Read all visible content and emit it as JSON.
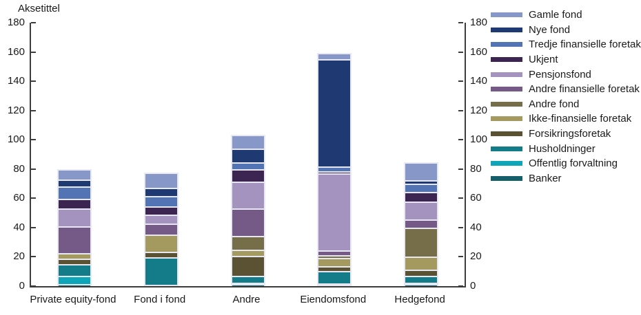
{
  "chart_data": {
    "type": "bar",
    "stacked": true,
    "title": "Aksetittel",
    "xlabel": "",
    "ylabel": "Aksetittel",
    "ylim": [
      0,
      180
    ],
    "ytick_step": 20,
    "grid": false,
    "legend_position": "right",
    "dual_y_axis": true,
    "categories": [
      "Private equity-fond",
      "Fond i fond",
      "Andre",
      "Eiendomsfond",
      "Hedgefond"
    ],
    "series": [
      {
        "name": "Gamle fond",
        "color": "#8798c8",
        "values": [
          7.0,
          10.6,
          9.5,
          4.2,
          12.3
        ]
      },
      {
        "name": "Nye fond",
        "color": "#1f3a72",
        "values": [
          4.7,
          5.8,
          9.7,
          73.7,
          2.5
        ]
      },
      {
        "name": "Tredje finansielle foretak",
        "color": "#5273b4",
        "values": [
          8.5,
          7.1,
          4.7,
          3.4,
          5.8
        ]
      },
      {
        "name": "Ukjent",
        "color": "#3d2551",
        "values": [
          6.6,
          5.6,
          8.4,
          1.4,
          6.3
        ]
      },
      {
        "name": "Pensjonsfond",
        "color": "#a393be",
        "values": [
          12.2,
          6.1,
          18.2,
          52.8,
          12.6
        ]
      },
      {
        "name": "Andre finansielle foretak",
        "color": "#755a88",
        "values": [
          18.3,
          7.4,
          18.8,
          3.0,
          5.5
        ]
      },
      {
        "name": "Andre fond",
        "color": "#766e49",
        "values": [
          0,
          0,
          9.6,
          2.0,
          20.0
        ]
      },
      {
        "name": "Ikke-finansielle foretak",
        "color": "#a4995f",
        "values": [
          3.8,
          11.8,
          4.0,
          5.9,
          8.9
        ]
      },
      {
        "name": "Forsikringsforetak",
        "color": "#5a5232",
        "values": [
          3.8,
          4.0,
          14.0,
          3.2,
          4.0
        ]
      },
      {
        "name": "Husholdninger",
        "color": "#147b88",
        "values": [
          8.0,
          18.8,
          4.7,
          8.4,
          5.0
        ]
      },
      {
        "name": "Offentlig forvaltning",
        "color": "#0ea5b9",
        "values": [
          5.9,
          0,
          0.6,
          1.0,
          0.5
        ]
      },
      {
        "name": "Banker",
        "color": "#155f6a",
        "values": [
          1.2,
          0.5,
          1.3,
          0.5,
          1.3
        ]
      }
    ],
    "y_ticks_left": [
      "0",
      "20",
      "40",
      "60",
      "80",
      "100",
      "120",
      "140",
      "160",
      "180"
    ],
    "y_ticks_right": [
      "0",
      "20",
      "40",
      "60",
      "80",
      "100",
      "120",
      "140",
      "160",
      "180"
    ]
  }
}
